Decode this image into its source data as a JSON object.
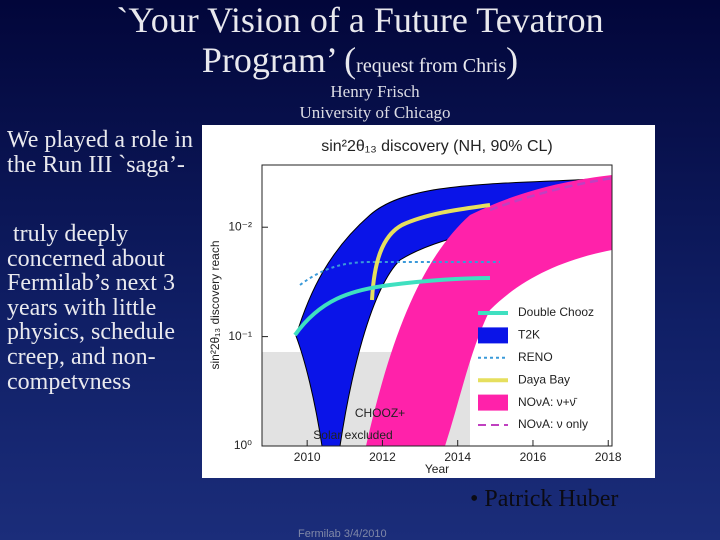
{
  "slide": {
    "title_line1": "`Your Vision of a Future Tevatron",
    "title_line2_start": "Program’ (",
    "title_request": "request from Chris",
    "title_close": ")",
    "author": "Henry Frisch",
    "affiliation": "University of Chicago",
    "left_text_1": "We played a role in the Run III `saga’-",
    "left_text_2": "truly deeply concerned about Fermilab’s next 3 years with little physics, schedule creep, and non-competvness",
    "credit": "• Patrick Huber",
    "footer": "Fermilab 3/4/2010"
  },
  "figure": {
    "title": "sin²2θ₁₃ discovery (NH, 90% CL)",
    "y_label": "sin²2θ₁₃ discovery reach",
    "x_label": "Year",
    "log_y": true,
    "ylim": [
      1,
      0.0027
    ],
    "yticks": [
      {
        "value": 0.01,
        "label": "10⁻²"
      },
      {
        "value": 0.1,
        "label": "10⁻¹"
      },
      {
        "value": 1,
        "label": "10⁰"
      }
    ],
    "xlim": [
      2008.8,
      2018.1
    ],
    "xticks": [
      2010,
      2012,
      2014,
      2016,
      2018
    ],
    "annotations": [
      "CHOOZ+",
      "Solar excluded"
    ],
    "legend": [
      {
        "name": "Double Chooz",
        "color": "#3fe0c0",
        "style": "line"
      },
      {
        "name": "T2K",
        "color": "#0a14e8",
        "style": "box"
      },
      {
        "name": "RENO",
        "color": "#3a9ad9",
        "style": "dotted"
      },
      {
        "name": "Daya Bay",
        "color": "#e6df5e",
        "style": "line"
      },
      {
        "name": "NOνA: ν+ν̄",
        "color": "#ff22aa",
        "style": "box"
      },
      {
        "name": "NOνA: ν only",
        "color": "#c040c0",
        "style": "dashed"
      }
    ]
  }
}
